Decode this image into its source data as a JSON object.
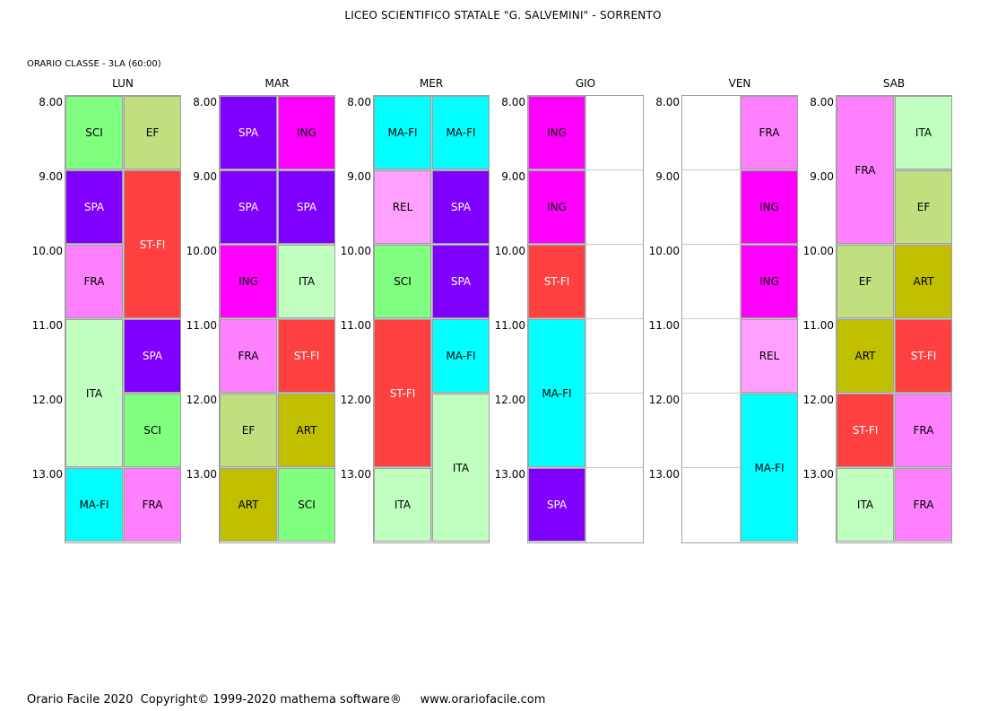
{
  "title": "LICEO SCIENTIFICO STATALE \"G. SALVEMINI\" - SORRENTO",
  "class_label": "ORARIO CLASSE  -  3LA  (60:00)",
  "footer": "Orario Facile 2020  Copyright© 1999-2020 mathema software®     www.orariofacile.com",
  "hours": [
    "8.00",
    "9.00",
    "10.00",
    "11.00",
    "12.00",
    "13.00"
  ],
  "subject_colors": {
    "SCI": "#80ff80",
    "EF": "#c0e080",
    "SPA": "#8000ff",
    "ST-FI": "#ff4040",
    "FRA": "#ff80ff",
    "ITA": "#c0ffc0",
    "MA-FI": "#00ffff",
    "ING": "#ff00ff",
    "REL": "#ffa0ff",
    "ART": "#c0c000"
  },
  "days": [
    {
      "name": "LUN",
      "columns": [
        [
          {
            "subject": "SCI",
            "start": 0,
            "span": 1
          },
          {
            "subject": "SPA",
            "start": 1,
            "span": 1
          },
          {
            "subject": "FRA",
            "start": 2,
            "span": 1
          },
          {
            "subject": "ITA",
            "start": 3,
            "span": 2
          },
          {
            "subject": "MA-FI",
            "start": 5,
            "span": 1
          }
        ],
        [
          {
            "subject": "EF",
            "start": 0,
            "span": 1
          },
          {
            "subject": "ST-FI",
            "start": 1,
            "span": 2
          },
          {
            "subject": "SPA",
            "start": 3,
            "span": 1
          },
          {
            "subject": "SCI",
            "start": 4,
            "span": 1
          },
          {
            "subject": "FRA",
            "start": 5,
            "span": 1
          }
        ]
      ]
    },
    {
      "name": "MAR",
      "columns": [
        [
          {
            "subject": "SPA",
            "start": 0,
            "span": 1
          },
          {
            "subject": "SPA",
            "start": 1,
            "span": 1
          },
          {
            "subject": "ING",
            "start": 2,
            "span": 1
          },
          {
            "subject": "FRA",
            "start": 3,
            "span": 1
          },
          {
            "subject": "EF",
            "start": 4,
            "span": 1
          },
          {
            "subject": "ART",
            "start": 5,
            "span": 1
          }
        ],
        [
          {
            "subject": "ING",
            "start": 0,
            "span": 1
          },
          {
            "subject": "SPA",
            "start": 1,
            "span": 1
          },
          {
            "subject": "ITA",
            "start": 2,
            "span": 1
          },
          {
            "subject": "ST-FI",
            "start": 3,
            "span": 1
          },
          {
            "subject": "ART",
            "start": 4,
            "span": 1
          },
          {
            "subject": "SCI",
            "start": 5,
            "span": 1
          }
        ]
      ]
    },
    {
      "name": "MER",
      "columns": [
        [
          {
            "subject": "MA-FI",
            "start": 0,
            "span": 1
          },
          {
            "subject": "REL",
            "start": 1,
            "span": 1
          },
          {
            "subject": "SCI",
            "start": 2,
            "span": 1
          },
          {
            "subject": "ST-FI",
            "start": 3,
            "span": 2
          },
          {
            "subject": "ITA",
            "start": 5,
            "span": 1
          }
        ],
        [
          {
            "subject": "MA-FI",
            "start": 0,
            "span": 1
          },
          {
            "subject": "SPA",
            "start": 1,
            "span": 1
          },
          {
            "subject": "SPA",
            "start": 2,
            "span": 1
          },
          {
            "subject": "MA-FI",
            "start": 3,
            "span": 1
          },
          {
            "subject": "ITA",
            "start": 4,
            "span": 2
          }
        ]
      ]
    },
    {
      "name": "GIO",
      "columns": [
        [
          {
            "subject": "ING",
            "start": 0,
            "span": 1
          },
          {
            "subject": "ING",
            "start": 1,
            "span": 1
          },
          {
            "subject": "ST-FI",
            "start": 2,
            "span": 1
          },
          {
            "subject": "MA-FI",
            "start": 3,
            "span": 2
          },
          {
            "subject": "SPA",
            "start": 5,
            "span": 1
          }
        ],
        []
      ]
    },
    {
      "name": "VEN",
      "columns": [
        [],
        [
          {
            "subject": "FRA",
            "start": 0,
            "span": 1
          },
          {
            "subject": "ING",
            "start": 1,
            "span": 1
          },
          {
            "subject": "ING",
            "start": 2,
            "span": 1
          },
          {
            "subject": "REL",
            "start": 3,
            "span": 1
          },
          {
            "subject": "MA-FI",
            "start": 4,
            "span": 2
          }
        ]
      ]
    },
    {
      "name": "SAB",
      "columns": [
        [
          {
            "subject": "FRA",
            "start": 0,
            "span": 2
          },
          {
            "subject": "EF",
            "start": 2,
            "span": 1
          },
          {
            "subject": "ART",
            "start": 3,
            "span": 1
          },
          {
            "subject": "ST-FI",
            "start": 4,
            "span": 1
          },
          {
            "subject": "ITA",
            "start": 5,
            "span": 1
          }
        ],
        [
          {
            "subject": "ITA",
            "start": 0,
            "span": 1
          },
          {
            "subject": "EF",
            "start": 1,
            "span": 1
          },
          {
            "subject": "ART",
            "start": 2,
            "span": 1
          },
          {
            "subject": "ST-FI",
            "start": 3,
            "span": 1
          },
          {
            "subject": "FRA",
            "start": 4,
            "span": 1
          },
          {
            "subject": "FRA",
            "start": 5,
            "span": 1
          }
        ]
      ]
    }
  ]
}
